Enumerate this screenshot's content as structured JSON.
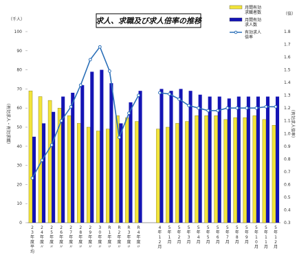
{
  "chart_data": {
    "type": "bar",
    "title": "求人、求職及び求人倍率の推移",
    "left_unit": "（千人）",
    "right_unit": "（倍）",
    "ylabel_left": "（有効求人・有効求職）",
    "ylabel_right": "（有効求人倍率）",
    "ylim_left": [
      0,
      100
    ],
    "ylim_right": [
      0.3,
      1.8
    ],
    "left_ticks": [
      0,
      10,
      20,
      30,
      40,
      50,
      60,
      70,
      80,
      90,
      100
    ],
    "right_ticks": [
      "0.3",
      "0.4",
      "0.5",
      "0.6",
      "0.7",
      "0.8",
      "0.9",
      "1.0",
      "1.1",
      "1.2",
      "1.3",
      "1.4",
      "1.5",
      "1.6",
      "1.7",
      "1.8"
    ],
    "categories": [
      {
        "text": "23年度平均"
      },
      {
        "text": "24年度〃"
      },
      {
        "text": "25年度〃"
      },
      {
        "text": "26年度〃"
      },
      {
        "text": "27年度〃"
      },
      {
        "text": "28年度〃"
      },
      {
        "text": "29年度〃"
      },
      {
        "text": "30年度〃"
      },
      {
        "text": "R1年度〃"
      },
      {
        "text": "R2年度〃"
      },
      {
        "text": "R3年度〃"
      },
      {
        "text": "R4年度〃"
      },
      {
        "text": "4年12月"
      },
      {
        "text": "5年1月"
      },
      {
        "text": "5年2月"
      },
      {
        "text": "5年3月"
      },
      {
        "text": "5年4月"
      },
      {
        "text": "5年5月"
      },
      {
        "text": "5年6月"
      },
      {
        "text": "5年7月"
      },
      {
        "text": "5年8月"
      },
      {
        "text": "5年9月"
      },
      {
        "text": "5年10月"
      },
      {
        "text": "5年11月"
      },
      {
        "text": "5年12月"
      }
    ],
    "series": [
      {
        "name": "月間有効求職者数",
        "type": "bar",
        "axis": "left",
        "color": "#f2e43a",
        "values": [
          69,
          66,
          64,
          60,
          56,
          52,
          50,
          48,
          49,
          56,
          55,
          53,
          49,
          50,
          52,
          53,
          56,
          56,
          56,
          54,
          55,
          55,
          56,
          54,
          51
        ]
      },
      {
        "name": "月間有効求人数",
        "type": "bar",
        "axis": "left",
        "color": "#1414b4",
        "values": [
          45,
          52,
          58,
          66,
          68,
          72,
          79,
          80,
          73,
          52,
          63,
          69,
          70,
          69,
          70,
          69,
          67,
          66,
          66,
          65,
          66,
          66,
          66,
          66,
          66
        ]
      },
      {
        "name": "有効求人倍率",
        "type": "line",
        "axis": "right",
        "color": "#2a6fb8",
        "values": [
          0.65,
          0.79,
          0.91,
          1.1,
          1.21,
          1.38,
          1.58,
          1.68,
          1.49,
          0.97,
          1.16,
          1.3,
          1.32,
          1.31,
          1.27,
          1.22,
          1.2,
          1.18,
          1.18,
          1.2,
          1.2,
          1.2,
          1.2,
          1.21,
          1.21
        ]
      }
    ],
    "gap_after_index": 11,
    "legend_position": "top-right",
    "grid": false
  }
}
